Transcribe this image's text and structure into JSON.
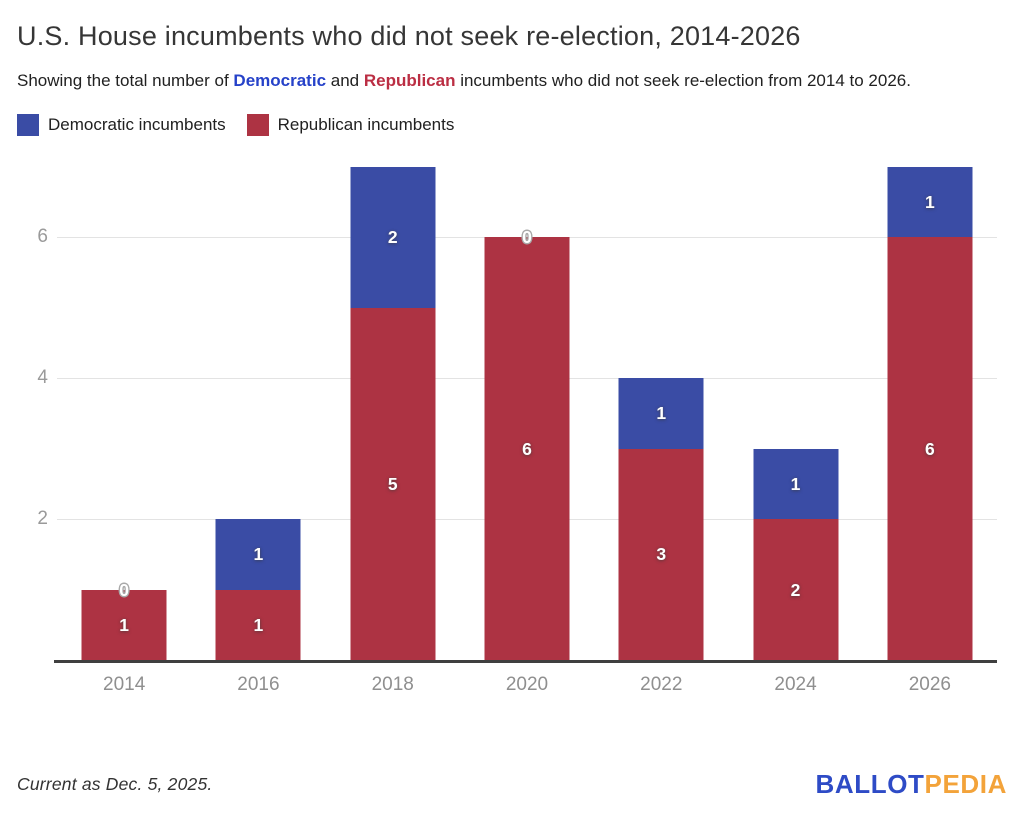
{
  "header": {
    "title": "U.S. House incumbents who did not seek re-election, 2014-2026",
    "subtitle_prefix": "Showing the total number of ",
    "subtitle_democratic": "Democratic",
    "subtitle_and": " and ",
    "subtitle_republican": "Republican",
    "subtitle_suffix": " incumbents who did not seek re-election from 2014 to 2026."
  },
  "legend": {
    "items": [
      {
        "label": "Democratic incumbents",
        "color_key": "democratic"
      },
      {
        "label": "Republican incumbents",
        "color_key": "republican"
      }
    ]
  },
  "chart_data": {
    "type": "bar",
    "stacked": true,
    "title": "U.S. House incumbents who did not seek re-election, 2014-2026",
    "categories": [
      "2014",
      "2016",
      "2018",
      "2020",
      "2022",
      "2024",
      "2026"
    ],
    "series": [
      {
        "name": "Democratic incumbents",
        "color": "#3A4CA5",
        "values": [
          0,
          1,
          2,
          0,
          1,
          1,
          1
        ]
      },
      {
        "name": "Republican incumbents",
        "color": "#AD3343",
        "values": [
          1,
          1,
          5,
          6,
          3,
          2,
          6
        ]
      }
    ],
    "totals": [
      1,
      2,
      7,
      6,
      4,
      3,
      7
    ],
    "xlabel": "",
    "ylabel": "",
    "ylim": [
      0,
      7
    ],
    "y_ticks": [
      2,
      4,
      6
    ],
    "grid": true,
    "legend_position": "top",
    "bar_value_labels_shown": true
  },
  "footer": {
    "note": "Current as Dec. 5, 2025.",
    "logo_ballot": "BALLOT",
    "logo_pedia": "PEDIA"
  },
  "colors": {
    "democratic": "#3A4CA5",
    "republican": "#AD3343",
    "dem_text": "#2642C9",
    "rep_text": "#BB2E43",
    "logo_blue": "#2E4BC6",
    "logo_orange": "#F3A33A",
    "gridline": "#E3E3E3",
    "axis_line": "#3F3F3F",
    "tick_text": "#9A9A9A"
  }
}
